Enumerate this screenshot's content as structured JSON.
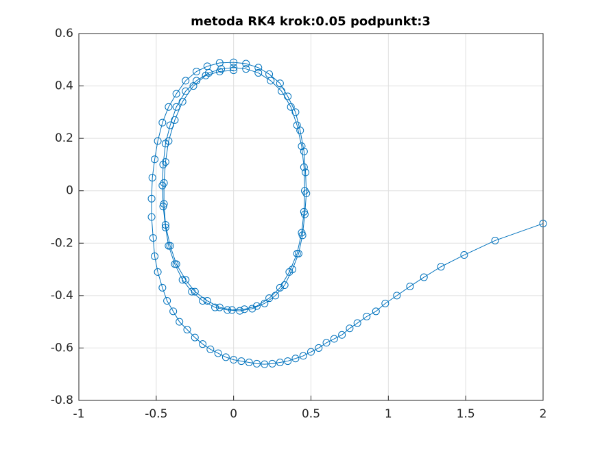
{
  "chart_data": {
    "type": "line",
    "title": "metoda RK4 krok:0.05 podpunkt:3",
    "xlim": [
      -1,
      2
    ],
    "ylim": [
      -0.8,
      0.6
    ],
    "xticks": [
      -1,
      -0.5,
      0,
      0.5,
      1,
      1.5,
      2
    ],
    "yticks": [
      -0.8,
      -0.6,
      -0.4,
      -0.2,
      0,
      0.2,
      0.4,
      0.6
    ],
    "grid": true,
    "marker": "circle",
    "x": [
      2,
      1.69,
      1.49,
      1.34,
      1.23,
      1.14,
      1.055,
      0.98,
      0.92,
      0.86,
      0.8,
      0.75,
      0.7,
      0.65,
      0.6,
      0.55,
      0.5,
      0.45,
      0.4,
      0.35,
      0.3,
      0.25,
      0.2,
      0.15,
      0.1,
      0.05,
      0,
      -0.05,
      -0.1,
      -0.15,
      -0.2,
      -0.25,
      -0.3,
      -0.35,
      -0.39,
      -0.43,
      -0.46,
      -0.49,
      -0.51,
      -0.52,
      -0.53,
      -0.53,
      -0.525,
      -0.51,
      -0.49,
      -0.46,
      -0.42,
      -0.37,
      -0.31,
      -0.24,
      -0.17,
      -0.09,
      0,
      0.08,
      0.16,
      0.23,
      0.3,
      0.35,
      0.4,
      0.43,
      0.455,
      0.465,
      0.47,
      0.46,
      0.445,
      0.42,
      0.38,
      0.33,
      0.27,
      0.2,
      0.12,
      0.04,
      -0.04,
      -0.12,
      -0.2,
      -0.27,
      -0.33,
      -0.38,
      -0.42,
      -0.44,
      -0.455,
      -0.46,
      -0.455,
      -0.44,
      -0.41,
      -0.37,
      -0.31,
      -0.24,
      -0.16,
      -0.08,
      0,
      0.08,
      0.16,
      0.24,
      0.31,
      0.37,
      0.41,
      0.44,
      0.455,
      0.46,
      0.455,
      0.44,
      0.41,
      0.36,
      0.3,
      0.23,
      0.15,
      0.07,
      -0.01,
      -0.09,
      -0.17,
      -0.25,
      -0.31,
      -0.37,
      -0.41,
      -0.44,
      -0.45,
      -0.45,
      -0.44,
      -0.42,
      -0.38,
      -0.33,
      -0.26,
      -0.18,
      -0.09,
      0
    ],
    "series": [
      {
        "color": "#0072bd",
        "values": [
          -0.125,
          -0.19,
          -0.245,
          -0.29,
          -0.33,
          -0.365,
          -0.4,
          -0.43,
          -0.46,
          -0.48,
          -0.505,
          -0.525,
          -0.55,
          -0.565,
          -0.58,
          -0.6,
          -0.615,
          -0.63,
          -0.64,
          -0.65,
          -0.655,
          -0.66,
          -0.662,
          -0.66,
          -0.655,
          -0.65,
          -0.645,
          -0.635,
          -0.62,
          -0.605,
          -0.585,
          -0.56,
          -0.53,
          -0.5,
          -0.46,
          -0.42,
          -0.37,
          -0.31,
          -0.25,
          -0.18,
          -0.1,
          -0.03,
          0.05,
          0.12,
          0.19,
          0.26,
          0.32,
          0.37,
          0.42,
          0.455,
          0.475,
          0.488,
          0.49,
          0.485,
          0.47,
          0.445,
          0.41,
          0.36,
          0.3,
          0.23,
          0.15,
          0.07,
          -0.01,
          -0.09,
          -0.17,
          -0.24,
          -0.3,
          -0.36,
          -0.4,
          -0.43,
          -0.45,
          -0.458,
          -0.455,
          -0.445,
          -0.42,
          -0.385,
          -0.34,
          -0.28,
          -0.21,
          -0.14,
          -0.06,
          0.02,
          0.1,
          0.18,
          0.25,
          0.32,
          0.38,
          0.42,
          0.45,
          0.465,
          0.47,
          0.465,
          0.45,
          0.42,
          0.38,
          0.32,
          0.25,
          0.17,
          0.09,
          0,
          -0.08,
          -0.16,
          -0.24,
          -0.31,
          -0.37,
          -0.41,
          -0.44,
          -0.452,
          -0.455,
          -0.445,
          -0.42,
          -0.385,
          -0.34,
          -0.28,
          -0.21,
          -0.13,
          -0.05,
          0.03,
          0.11,
          0.19,
          0.27,
          0.34,
          0.4,
          0.44,
          0.455,
          0.46
        ]
      }
    ]
  }
}
